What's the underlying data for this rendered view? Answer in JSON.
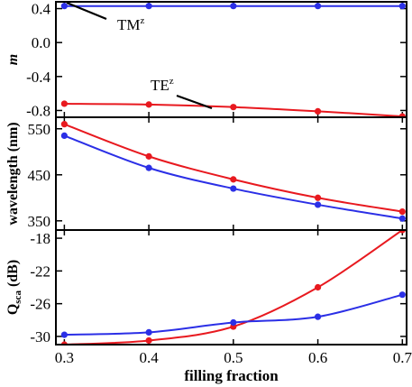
{
  "colors": {
    "red": "#e8191f",
    "blue": "#2b2fe6"
  },
  "xlabel": "filling fraction",
  "chart_data": [
    {
      "type": "line",
      "x": [
        0.3,
        0.4,
        0.5,
        0.6,
        0.7
      ],
      "ylabel": "m",
      "ylim": [
        -0.88,
        0.48
      ],
      "yticks": [
        "0.4",
        "0.0",
        "-0.4",
        "-0.8"
      ],
      "series": [
        {
          "name": "TM",
          "color": "blue",
          "values": [
            0.43,
            0.43,
            0.43,
            0.43,
            0.43
          ]
        },
        {
          "name": "TE",
          "color": "red",
          "values": [
            -0.72,
            -0.73,
            -0.76,
            -0.81,
            -0.87
          ]
        }
      ],
      "annotations": [
        {
          "text": "TM",
          "sup": "z"
        },
        {
          "text": "TE",
          "sup": "z"
        }
      ]
    },
    {
      "type": "line",
      "x": [
        0.3,
        0.4,
        0.5,
        0.6,
        0.7
      ],
      "ylabel": "wavelength (nm)",
      "ylim": [
        330,
        575
      ],
      "yticks": [
        "550",
        "450",
        "350"
      ],
      "series": [
        {
          "color": "red",
          "values": [
            560,
            490,
            440,
            400,
            370
          ]
        },
        {
          "color": "blue",
          "values": [
            535,
            465,
            420,
            385,
            355
          ]
        }
      ]
    },
    {
      "type": "line",
      "x": [
        0.3,
        0.4,
        0.5,
        0.6,
        0.7
      ],
      "ylabel": "Q",
      "ylabel_sub": "sca",
      "ylabel_unit": " (dB)",
      "ylim": [
        -31,
        -17
      ],
      "yticks": [
        "-18",
        "-22",
        "-26",
        "-30"
      ],
      "series": [
        {
          "color": "red",
          "values": [
            -31.0,
            -30.5,
            -28.8,
            -24.0,
            -17.0
          ]
        },
        {
          "color": "blue",
          "values": [
            -29.8,
            -29.5,
            -28.3,
            -27.6,
            -24.9
          ]
        }
      ]
    }
  ],
  "xticks": [
    "0.3",
    "0.4",
    "0.5",
    "0.6",
    "0.7"
  ]
}
